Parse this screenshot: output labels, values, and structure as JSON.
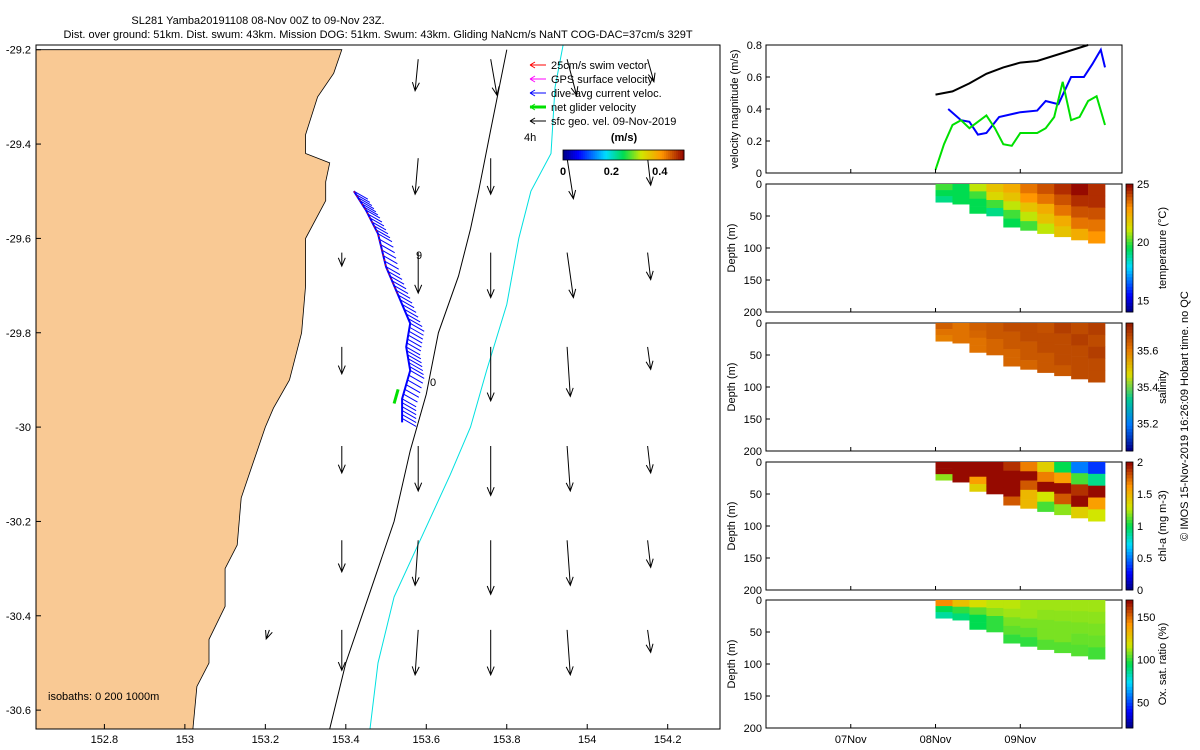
{
  "header": {
    "title": "SL281 Yamba20191108 08-Nov 00Z to 09-Nov 23Z.",
    "subtitle": "Dist. over ground: 51km. Dist. swum: 43km. Mission DOG: 51km. Swum: 43km. Gliding NaNcm/s NaNT COG-DAC=37cm/s 329T"
  },
  "credit": "© IMOS 15-Nov-2019 16:26:09 Hobart time. no QC",
  "colors": {
    "land": "#f9c994",
    "track": "#0000ff",
    "net_glider": "#00e000",
    "gps": "#ff00ff",
    "swim": "#ff0000",
    "isobath_shelf": "#000000",
    "isobath_deep": "#00e0e0",
    "geo_vel": "#000000"
  },
  "chart_data": [
    {
      "id": "map",
      "type": "scatter",
      "xlim": [
        152.63,
        154.33
      ],
      "ylim": [
        -30.64,
        -29.19
      ],
      "xticks": [
        "152.8",
        "153",
        "153.2",
        "153.4",
        "153.6",
        "153.8",
        "154",
        "154.2"
      ],
      "yticks": [
        "-29.2",
        "-29.4",
        "-29.6",
        "-29.8",
        "-30",
        "-30.2",
        "-30.4",
        "-30.6"
      ],
      "legend": [
        {
          "label": "25cm/s swim vector",
          "color": "#ff0000"
        },
        {
          "label": "GPS surface velocity",
          "color": "#ff00ff"
        },
        {
          "label": "dive-avg current veloc.",
          "color": "#0000ff"
        },
        {
          "label": "net glider velocity",
          "color": "#00e000"
        },
        {
          "label": "sfc geo. vel. 09-Nov-2019",
          "color": "#000000"
        }
      ],
      "colorbar": {
        "label": "(m/s)",
        "ticks": [
          "0",
          "0.2",
          "0.4"
        ],
        "range": [
          0,
          0.5
        ]
      },
      "isobaths_label": "isobaths: 0   200  1000m",
      "annotations": [
        "4h",
        "9",
        "0"
      ],
      "coastline": [
        [
          152.63,
          -29.2
        ],
        [
          153.39,
          -29.2
        ],
        [
          153.37,
          -29.25
        ],
        [
          153.33,
          -29.3
        ],
        [
          153.3,
          -29.38
        ],
        [
          153.3,
          -29.42
        ],
        [
          153.36,
          -29.44
        ],
        [
          153.35,
          -29.48
        ],
        [
          153.35,
          -29.52
        ],
        [
          153.3,
          -29.6
        ],
        [
          153.3,
          -29.65
        ],
        [
          153.3,
          -29.7
        ],
        [
          153.29,
          -29.8
        ],
        [
          153.26,
          -29.9
        ],
        [
          153.22,
          -29.96
        ],
        [
          153.2,
          -30.0
        ],
        [
          153.16,
          -30.1
        ],
        [
          153.14,
          -30.15
        ],
        [
          153.13,
          -30.25
        ],
        [
          153.1,
          -30.3
        ],
        [
          153.1,
          -30.38
        ],
        [
          153.06,
          -30.45
        ],
        [
          153.06,
          -30.5
        ],
        [
          153.03,
          -30.55
        ],
        [
          153.02,
          -30.64
        ],
        [
          152.63,
          -30.64
        ]
      ],
      "glider_track": [
        [
          153.42,
          -29.5
        ],
        [
          153.45,
          -29.54
        ],
        [
          153.48,
          -29.59
        ],
        [
          153.5,
          -29.66
        ],
        [
          153.53,
          -29.72
        ],
        [
          153.56,
          -29.78
        ],
        [
          153.55,
          -29.83
        ],
        [
          153.56,
          -29.88
        ],
        [
          153.54,
          -29.94
        ],
        [
          153.54,
          -29.99
        ]
      ],
      "isobath_200": [
        [
          153.36,
          -30.64
        ],
        [
          153.4,
          -30.5
        ],
        [
          153.46,
          -30.35
        ],
        [
          153.52,
          -30.2
        ],
        [
          153.56,
          -30.05
        ],
        [
          153.6,
          -29.93
        ],
        [
          153.63,
          -29.8
        ],
        [
          153.68,
          -29.68
        ],
        [
          153.71,
          -29.58
        ],
        [
          153.73,
          -29.5
        ],
        [
          153.76,
          -29.37
        ],
        [
          153.8,
          -29.2
        ]
      ],
      "isobath_1000": [
        [
          153.46,
          -30.64
        ],
        [
          153.48,
          -30.5
        ],
        [
          153.52,
          -30.36
        ],
        [
          153.59,
          -30.23
        ],
        [
          153.66,
          -30.1
        ],
        [
          153.71,
          -30.0
        ],
        [
          153.75,
          -29.88
        ],
        [
          153.8,
          -29.74
        ],
        [
          153.83,
          -29.6
        ],
        [
          153.86,
          -29.5
        ],
        [
          153.91,
          -29.42
        ],
        [
          153.92,
          -29.28
        ],
        [
          153.94,
          -29.19
        ]
      ],
      "geo_vectors": [
        {
          "lon": 153.58,
          "lat": -29.22,
          "u": -0.01,
          "v": -0.07
        },
        {
          "lon": 153.76,
          "lat": -29.22,
          "u": 0.02,
          "v": -0.08
        },
        {
          "lon": 153.95,
          "lat": -29.22,
          "u": 0.03,
          "v": -0.08
        },
        {
          "lon": 154.15,
          "lat": -29.22,
          "u": 0.02,
          "v": -0.05
        },
        {
          "lon": 153.58,
          "lat": -29.43,
          "u": -0.01,
          "v": -0.08
        },
        {
          "lon": 153.76,
          "lat": -29.43,
          "u": 0.0,
          "v": -0.08
        },
        {
          "lon": 153.95,
          "lat": -29.43,
          "u": 0.02,
          "v": -0.09
        },
        {
          "lon": 154.15,
          "lat": -29.43,
          "u": 0.01,
          "v": -0.06
        },
        {
          "lon": 153.39,
          "lat": -29.63,
          "u": 0.0,
          "v": -0.03
        },
        {
          "lon": 153.58,
          "lat": -29.63,
          "u": 0.0,
          "v": -0.09
        },
        {
          "lon": 153.76,
          "lat": -29.63,
          "u": 0.0,
          "v": -0.1
        },
        {
          "lon": 153.95,
          "lat": -29.63,
          "u": 0.02,
          "v": -0.1
        },
        {
          "lon": 154.15,
          "lat": -29.63,
          "u": 0.01,
          "v": -0.06
        },
        {
          "lon": 153.39,
          "lat": -29.83,
          "u": 0.0,
          "v": -0.06
        },
        {
          "lon": 153.76,
          "lat": -29.83,
          "u": 0.0,
          "v": -0.12
        },
        {
          "lon": 153.95,
          "lat": -29.83,
          "u": 0.01,
          "v": -0.11
        },
        {
          "lon": 154.15,
          "lat": -29.83,
          "u": 0.01,
          "v": -0.05
        },
        {
          "lon": 153.39,
          "lat": -30.04,
          "u": 0.0,
          "v": -0.06
        },
        {
          "lon": 153.58,
          "lat": -30.04,
          "u": 0.0,
          "v": -0.1
        },
        {
          "lon": 153.76,
          "lat": -30.04,
          "u": 0.0,
          "v": -0.11
        },
        {
          "lon": 153.95,
          "lat": -30.04,
          "u": 0.01,
          "v": -0.1
        },
        {
          "lon": 154.15,
          "lat": -30.04,
          "u": 0.01,
          "v": -0.06
        },
        {
          "lon": 153.39,
          "lat": -30.24,
          "u": 0.0,
          "v": -0.07
        },
        {
          "lon": 153.58,
          "lat": -30.24,
          "u": -0.01,
          "v": -0.1
        },
        {
          "lon": 153.76,
          "lat": -30.24,
          "u": 0.0,
          "v": -0.12
        },
        {
          "lon": 153.95,
          "lat": -30.24,
          "u": 0.01,
          "v": -0.1
        },
        {
          "lon": 154.15,
          "lat": -30.24,
          "u": 0.01,
          "v": -0.06
        },
        {
          "lon": 153.21,
          "lat": -30.43,
          "u": -0.01,
          "v": -0.02
        },
        {
          "lon": 153.39,
          "lat": -30.43,
          "u": 0.0,
          "v": -0.09
        },
        {
          "lon": 153.58,
          "lat": -30.43,
          "u": -0.01,
          "v": -0.1
        },
        {
          "lon": 153.76,
          "lat": -30.43,
          "u": 0.0,
          "v": -0.1
        },
        {
          "lon": 153.95,
          "lat": -30.43,
          "u": 0.01,
          "v": -0.1
        },
        {
          "lon": 154.15,
          "lat": -30.43,
          "u": 0.01,
          "v": -0.05
        }
      ]
    },
    {
      "id": "velocity",
      "type": "line",
      "ylabel": "velocity magnitude (m/s)",
      "ylim": [
        0,
        0.8
      ],
      "yticks": [
        "0",
        "0.2",
        "0.4",
        "0.6",
        "0.8"
      ],
      "x_day_range": [
        6,
        10.2
      ],
      "xticks": [
        "07Nov",
        "08Nov",
        "09Nov"
      ],
      "series": [
        {
          "color": "#000000",
          "x": [
            8.0,
            8.2,
            8.4,
            8.6,
            8.8,
            9.0,
            9.2,
            9.5,
            9.8
          ],
          "values": [
            0.49,
            0.51,
            0.56,
            0.62,
            0.66,
            0.69,
            0.7,
            0.75,
            0.8
          ]
        },
        {
          "color": "#0000ff",
          "x": [
            8.15,
            8.3,
            8.4,
            8.5,
            8.6,
            8.75,
            9.0,
            9.2,
            9.3,
            9.45,
            9.6,
            9.75,
            9.85,
            9.95,
            10.0
          ],
          "values": [
            0.4,
            0.33,
            0.32,
            0.24,
            0.25,
            0.35,
            0.38,
            0.39,
            0.45,
            0.43,
            0.6,
            0.6,
            0.68,
            0.77,
            0.66
          ]
        },
        {
          "color": "#00e000",
          "x": [
            8.0,
            8.1,
            8.2,
            8.3,
            8.4,
            8.6,
            8.7,
            8.8,
            8.9,
            9.0,
            9.1,
            9.2,
            9.3,
            9.4,
            9.5,
            9.6,
            9.7,
            9.8,
            9.9,
            10.0
          ],
          "values": [
            0.02,
            0.18,
            0.3,
            0.33,
            0.28,
            0.36,
            0.28,
            0.18,
            0.17,
            0.25,
            0.25,
            0.25,
            0.28,
            0.35,
            0.57,
            0.33,
            0.35,
            0.45,
            0.48,
            0.3
          ]
        }
      ]
    },
    {
      "id": "temperature",
      "type": "heatmap",
      "ylabel": "Depth (m)",
      "colorbar_label": "temperature (°C)",
      "yticks": [
        "0",
        "50",
        "100",
        "150",
        "200"
      ],
      "cticks": [
        "15",
        "20",
        "25"
      ],
      "clim": [
        14,
        25
      ],
      "x_day_range": [
        6,
        10.2
      ],
      "profile_x": [
        8.0,
        10.0
      ],
      "profile_depth": [
        [
          0,
          45
        ],
        [
          0,
          95
        ]
      ],
      "value_rows": [
        [
          20,
          19.5,
          21,
          22,
          22.5,
          23.5,
          24,
          24.5,
          25,
          24.5
        ],
        [
          19.5,
          19.5,
          20,
          21.5,
          22,
          23,
          23.5,
          24,
          24.5,
          24.5
        ],
        [
          19,
          19.5,
          19.5,
          20,
          21,
          22,
          22.5,
          23.5,
          24,
          24
        ],
        [
          null,
          null,
          19.5,
          19,
          20,
          21,
          22,
          22.5,
          23.5,
          23.5
        ],
        [
          null,
          null,
          null,
          null,
          19.5,
          20,
          21,
          22,
          22.5,
          23
        ]
      ]
    },
    {
      "id": "salinity",
      "type": "heatmap",
      "ylabel": "Depth (m)",
      "colorbar_label": "salinity",
      "yticks": [
        "0",
        "50",
        "100",
        "150",
        "200"
      ],
      "cticks": [
        "35.2",
        "35.4",
        "35.6"
      ],
      "clim": [
        35.05,
        35.75
      ],
      "x_day_range": [
        6,
        10.2
      ],
      "profile_x": [
        8.0,
        10.0
      ],
      "profile_depth": [
        [
          0,
          45
        ],
        [
          0,
          95
        ]
      ],
      "value_rows": [
        [
          35.65,
          35.62,
          35.65,
          35.66,
          35.68,
          35.68,
          35.67,
          35.7,
          35.68,
          35.7
        ],
        [
          35.62,
          35.62,
          35.64,
          35.66,
          35.66,
          35.68,
          35.68,
          35.68,
          35.7,
          35.68
        ],
        [
          35.6,
          35.62,
          35.62,
          35.64,
          35.66,
          35.66,
          35.68,
          35.68,
          35.68,
          35.7
        ],
        [
          null,
          null,
          35.62,
          35.64,
          35.64,
          35.66,
          35.66,
          35.68,
          35.68,
          35.68
        ],
        [
          null,
          null,
          null,
          null,
          35.64,
          35.64,
          35.66,
          35.66,
          35.68,
          35.68
        ]
      ]
    },
    {
      "id": "chlorophyll",
      "type": "heatmap",
      "ylabel": "Depth (m)",
      "colorbar_label": "chl-a (mg m-3)",
      "yticks": [
        "0",
        "50",
        "100",
        "150",
        "200"
      ],
      "cticks": [
        "0",
        "0.5",
        "1",
        "1.5",
        "2"
      ],
      "clim": [
        0,
        2
      ],
      "x_day_range": [
        6,
        10.2
      ],
      "profile_x": [
        8.0,
        10.0
      ],
      "profile_depth": [
        [
          0,
          45
        ],
        [
          0,
          95
        ]
      ],
      "value_rows": [
        [
          2,
          2,
          2,
          2,
          1.9,
          1.7,
          1.4,
          1.0,
          0.5,
          0.35
        ],
        [
          2,
          2,
          2,
          2,
          2,
          2,
          1.7,
          1.6,
          1.1,
          0.9
        ],
        [
          1.2,
          2,
          1.6,
          2,
          2,
          1.8,
          2,
          2,
          1.9,
          2
        ],
        [
          null,
          null,
          1.4,
          2,
          2,
          1.5,
          1.3,
          1.8,
          2,
          1.6
        ],
        [
          null,
          null,
          null,
          null,
          1.8,
          1.5,
          1.1,
          1.2,
          1.4,
          1.3
        ]
      ]
    },
    {
      "id": "oxygen",
      "type": "heatmap",
      "ylabel": "Depth (m)",
      "colorbar_label": "Ox. sat. ratio (%)",
      "yticks": [
        "0",
        "50",
        "100",
        "150",
        "200"
      ],
      "cticks": [
        "50",
        "100",
        "150"
      ],
      "clim": [
        20,
        170
      ],
      "x_day_range": [
        6,
        10.2
      ],
      "profile_x": [
        8.0,
        10.0
      ],
      "profile_depth": [
        [
          0,
          45
        ],
        [
          0,
          95
        ]
      ],
      "value_rows": [
        [
          145,
          130,
          120,
          115,
          115,
          112,
          112,
          112,
          112,
          112
        ],
        [
          95,
          100,
          105,
          110,
          112,
          112,
          110,
          110,
          110,
          110
        ],
        [
          85,
          90,
          95,
          100,
          108,
          108,
          108,
          108,
          108,
          108
        ],
        [
          null,
          null,
          95,
          100,
          105,
          105,
          108,
          108,
          106,
          106
        ],
        [
          null,
          null,
          null,
          null,
          100,
          100,
          104,
          104,
          104,
          102
        ]
      ]
    }
  ]
}
